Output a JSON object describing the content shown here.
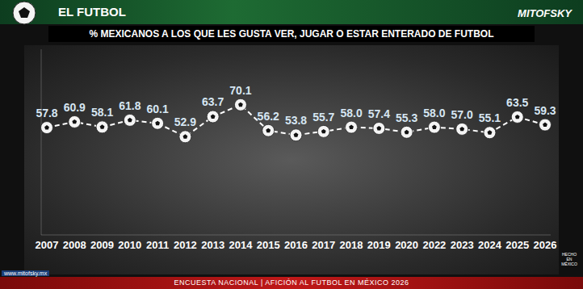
{
  "header": {
    "title": "EL FUTBOL",
    "brand": "MITOFSKY",
    "website": "www.mitofsky.mx"
  },
  "chart_data": {
    "type": "line",
    "title": "% MEXICANOS A LOS QUE LES GUSTA VER, JUGAR O ESTAR ENTERADO DE FUTBOL",
    "categories": [
      "2007",
      "2008",
      "2009",
      "2010",
      "2011",
      "2012",
      "2013",
      "2014",
      "2015",
      "2016",
      "2017",
      "2018",
      "2019",
      "2020",
      "2022",
      "2023",
      "2024",
      "2025",
      "2026"
    ],
    "values": [
      57.8,
      60.9,
      58.1,
      61.8,
      60.1,
      52.9,
      63.7,
      70.1,
      56.2,
      53.8,
      55.7,
      58.0,
      57.4,
      55.3,
      58.0,
      57.0,
      55.1,
      63.5,
      59.3
    ],
    "value_labels": [
      "57.8",
      "60.9",
      "58.1",
      "61.8",
      "60.1",
      "52.9",
      "63.7",
      "70.1",
      "56.2",
      "53.8",
      "55.7",
      "58.0",
      "57.4",
      "55.3",
      "58.0",
      "57.0",
      "55.1",
      "63.5",
      "59.3"
    ],
    "color": "#ffffff",
    "ylim": [
      0,
      100
    ],
    "grid": false,
    "data_labels": true,
    "tick_labels": "x",
    "marker": "circle",
    "line_style": "dashed"
  },
  "footer": {
    "text": "ENCUESTA NACIONAL | AFICIÓN AL FUTBOL EN MÉXICO 2026",
    "badge": "HECHO EN MÉXICO"
  }
}
